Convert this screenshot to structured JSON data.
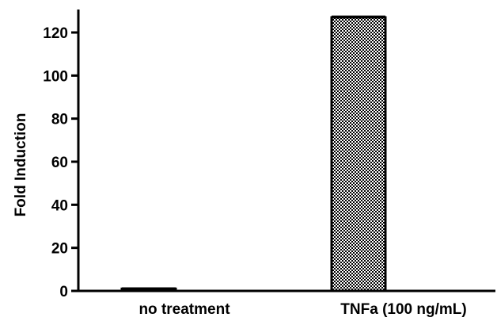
{
  "chart_data": {
    "type": "bar",
    "categories": [
      "no treatment",
      "TNFa (100 ng/mL)"
    ],
    "values": [
      1,
      127
    ],
    "errors": [
      0.3,
      0.5
    ],
    "ylabel": "Fold Induction",
    "xlabel": "",
    "ylim": [
      0,
      130
    ],
    "yticks": [
      0,
      20,
      40,
      60,
      80,
      100,
      120
    ],
    "grid": false,
    "bar_styles": [
      "solid",
      "checkered"
    ],
    "colors": {
      "bar_fill": "#000000",
      "bar_outline": "#000000",
      "axis": "#000000"
    }
  }
}
